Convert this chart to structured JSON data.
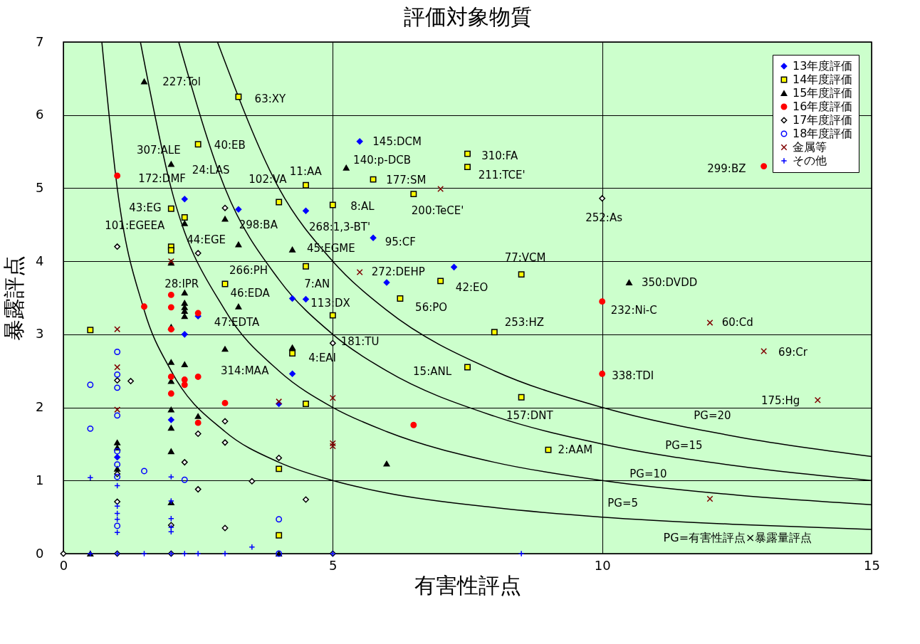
{
  "chart_data": {
    "type": "scatter",
    "title": "評価対象物質",
    "xlabel": "有害性評点",
    "ylabel": "暴露評点",
    "xlim": [
      0,
      15
    ],
    "ylim": [
      0,
      7
    ],
    "xticks": [
      0,
      5,
      10,
      15
    ],
    "yticks": [
      0,
      1,
      2,
      3,
      4,
      5,
      6,
      7
    ],
    "grid": true,
    "legend": "top right",
    "series": [
      {
        "name": "13年度評価",
        "color": "#0000ff",
        "marker": "diamond",
        "x": [
          5.5,
          2.25,
          3.25,
          4.5,
          5.75,
          6.0,
          7.25,
          4.25,
          4.5,
          2.5,
          2.25,
          4.25,
          2.0,
          4.0,
          1.0
        ],
        "values": [
          5.64,
          4.85,
          4.71,
          4.69,
          4.32,
          3.71,
          3.92,
          3.49,
          3.48,
          3.25,
          3.0,
          2.46,
          1.83,
          2.05,
          1.32
        ]
      },
      {
        "name": "14年度評価",
        "color": "#ffff00",
        "marker": "square",
        "x": [
          3.25,
          2.5,
          7.5,
          7.5,
          5.75,
          4.5,
          6.5,
          4.0,
          5.0,
          2.0,
          2.25,
          2.0,
          2.0,
          3.0,
          4.5,
          7.0,
          8.5,
          6.25,
          5.0,
          8.0,
          0.5,
          4.25,
          7.5,
          8.5,
          9.0,
          4.5,
          4.0,
          4.0
        ],
        "values": [
          6.25,
          5.6,
          5.47,
          5.29,
          5.12,
          5.04,
          4.92,
          4.81,
          4.77,
          4.72,
          4.6,
          4.2,
          4.15,
          3.69,
          3.93,
          3.73,
          3.82,
          3.49,
          3.26,
          3.03,
          3.06,
          2.74,
          2.55,
          2.14,
          1.42,
          2.05,
          1.16,
          0.25
        ]
      },
      {
        "name": "15年度評価",
        "color": "#000000",
        "marker": "triangle",
        "x": [
          1.5,
          2.0,
          5.25,
          2.25,
          3.0,
          3.25,
          4.25,
          2.0,
          2.25,
          2.25,
          2.25,
          2.25,
          2.25,
          3.25,
          2.0,
          3.0,
          4.25,
          2.0,
          2.25,
          2.0,
          2.0,
          2.5,
          2.0,
          2.0,
          1.0,
          1.0,
          1.0,
          2.0,
          6.0,
          10.5,
          0.5,
          4.0
        ],
        "values": [
          6.46,
          5.33,
          5.28,
          4.52,
          4.58,
          4.23,
          4.16,
          3.98,
          3.57,
          3.43,
          3.37,
          3.32,
          3.25,
          3.38,
          3.1,
          2.8,
          2.82,
          2.62,
          2.59,
          2.36,
          1.97,
          1.88,
          1.72,
          1.4,
          1.52,
          1.45,
          1.16,
          0.7,
          1.23,
          3.71,
          0,
          0
        ]
      },
      {
        "name": "16年度評価",
        "color": "#ff0000",
        "marker": "circle",
        "x": [
          1.0,
          13.0,
          10.0,
          10.0,
          6.5,
          2.0,
          1.5,
          2.0,
          2.5,
          2.0,
          2.0,
          2.25,
          2.25,
          2.5,
          2.0,
          3.0,
          2.5
        ],
        "values": [
          5.17,
          5.3,
          3.45,
          2.46,
          1.76,
          3.54,
          3.38,
          3.37,
          3.29,
          3.07,
          2.42,
          2.38,
          2.31,
          2.42,
          2.19,
          2.06,
          1.79
        ]
      },
      {
        "name": "17年度評価",
        "color": "#ffffff",
        "marker": "diamond",
        "x": [
          10.0,
          3.0,
          1.0,
          2.5,
          5.0,
          1.0,
          1.25,
          3.0,
          2.5,
          3.0,
          2.25,
          4.0,
          3.5,
          2.5,
          1.0,
          3.0,
          2.0,
          1.0,
          4.5,
          0,
          1.0,
          2.0,
          5.0
        ],
        "values": [
          4.86,
          4.73,
          4.2,
          4.11,
          2.88,
          2.37,
          2.36,
          1.81,
          1.64,
          1.52,
          1.25,
          1.31,
          0.99,
          0.88,
          0.71,
          0.35,
          0.39,
          1.09,
          0.74,
          0,
          0,
          0,
          0
        ]
      },
      {
        "name": "18年度評価",
        "color": "#0000ff",
        "marker": "circle_open",
        "x": [
          1.0,
          0.5,
          1.0,
          1.0,
          1.0,
          0.5,
          1.0,
          1.0,
          1.0,
          1.5,
          2.25,
          1.0,
          4.0,
          4.0
        ],
        "values": [
          2.76,
          2.31,
          2.45,
          2.27,
          1.89,
          1.71,
          1.4,
          1.22,
          1.05,
          1.13,
          1.01,
          0.38,
          0.47,
          0
        ]
      },
      {
        "name": "金属等",
        "color": "#800000",
        "marker": "x",
        "x": [
          7.0,
          5.5,
          12.0,
          13.0,
          14.0,
          12.0,
          5.0,
          5.0,
          5.0,
          1.0,
          1.0,
          1.0,
          4.0,
          2.0
        ],
        "values": [
          4.99,
          3.85,
          3.16,
          2.77,
          2.1,
          0.75,
          2.13,
          1.51,
          1.47,
          3.07,
          2.55,
          1.97,
          2.08,
          4.0
        ]
      },
      {
        "name": "その他",
        "color": "#0000ff",
        "marker": "cross",
        "x": [
          0.5,
          1.0,
          1.0,
          1.0,
          1.0,
          1.0,
          2.0,
          2.0,
          2.0,
          2.0,
          2.0,
          3.5,
          0.5,
          1.0,
          1.5,
          2.0,
          2.25,
          2.5,
          3.0,
          5.0,
          8.5
        ],
        "values": [
          1.04,
          0.93,
          0.65,
          0.55,
          0.47,
          0.29,
          1.05,
          0.72,
          0.48,
          0.36,
          0.3,
          0.09,
          0,
          0,
          0,
          0,
          0,
          0,
          0,
          0,
          0
        ]
      },
      {
        "type": "line",
        "color": "#000000",
        "x": [
          0.714,
          1,
          1.5,
          2,
          3,
          4,
          5,
          6,
          8,
          10,
          12.5,
          15
        ],
        "values": [
          7,
          5,
          3.33,
          2.5,
          1.67,
          1.25,
          1,
          0.83,
          0.63,
          0.5,
          0.4,
          0.33
        ]
      },
      {
        "type": "line",
        "color": "#000000",
        "x": [
          1.43,
          2,
          3,
          4,
          5,
          6,
          8,
          10,
          12.5,
          15
        ],
        "values": [
          7,
          5,
          3.33,
          2.5,
          2,
          1.67,
          1.25,
          1,
          0.8,
          0.67
        ]
      },
      {
        "type": "line",
        "color": "#000000",
        "x": [
          2.14,
          3,
          4,
          5,
          6,
          8,
          10,
          12.5,
          15
        ],
        "values": [
          7,
          5,
          3.75,
          3,
          2.5,
          1.88,
          1.5,
          1.2,
          1
        ]
      },
      {
        "type": "line",
        "color": "#000000",
        "x": [
          2.86,
          4,
          5,
          6,
          8,
          10,
          12.5,
          15
        ],
        "values": [
          7,
          5,
          4,
          3.33,
          2.5,
          2,
          1.6,
          1.33
        ]
      }
    ],
    "annotations": [
      "227:Tol",
      "63:XY",
      "40:EB",
      "307:ALE",
      "24:LAS",
      "172:DMF",
      "43:EG",
      "101:EGEEA",
      "44:EGE",
      "298:BA",
      "102:VA",
      "11:AA",
      "145:DCM",
      "140:p-DCB",
      "177:SM",
      "310:FA",
      "211:TCE'",
      "299:BZ",
      "8:AL",
      "200:TeCE'",
      "252:As",
      "268:1,3-BT'",
      "95:CF",
      "266:PH",
      "45:EGME",
      "272:DEHP",
      "77:VCM",
      "42:EO",
      "28:IPR",
      "7:AN",
      "46:EDA",
      "350:DVDD",
      "113:DX",
      "56:PO",
      "232:Ni-C",
      "47:EDTA",
      "253:HZ",
      "60:Cd",
      "181:TU",
      "69:Cr",
      "4:EAI",
      "314:MAA",
      "15:ANL",
      "338:TDI",
      "175:Hg",
      "157:DNT",
      "2:AAM",
      "PG=20",
      "PG=15",
      "PG=10",
      "PG=5",
      "PG=有害性評点×暴露量評点"
    ]
  }
}
